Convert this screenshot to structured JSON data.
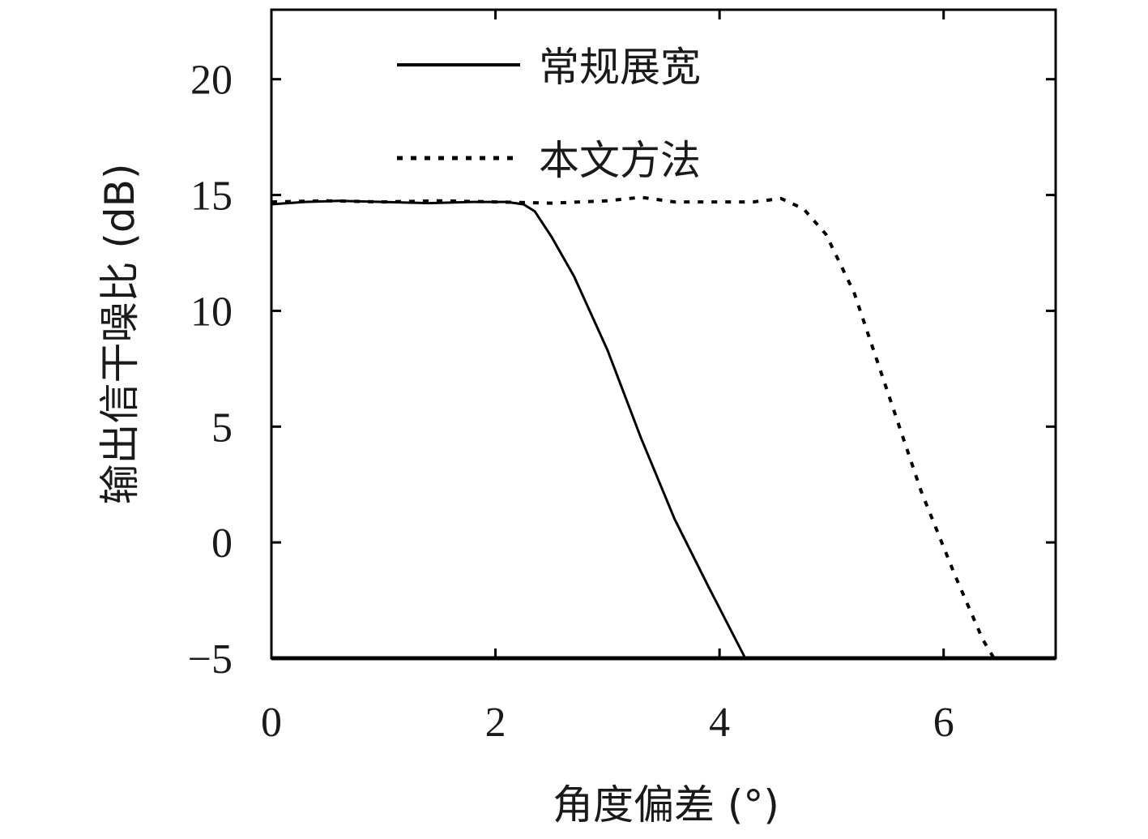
{
  "chart_data": {
    "type": "line",
    "title": "",
    "xlabel": "角度偏差 (°)",
    "ylabel": "输出信干噪比 (dB)",
    "xlim": [
      0,
      7
    ],
    "ylim": [
      -5,
      23
    ],
    "xticks": [
      0,
      2,
      4,
      6
    ],
    "yticks": [
      -5,
      0,
      5,
      10,
      15,
      20
    ],
    "xtick_labels": [
      "0",
      "2",
      "4",
      "6"
    ],
    "ytick_labels": [
      "−5",
      "0",
      "5",
      "10",
      "15",
      "20"
    ],
    "grid": false,
    "legend_position": "top-left",
    "series": [
      {
        "name": "常规展宽",
        "style": "solid",
        "color": "#000000",
        "x": [
          0,
          0.3,
          0.6,
          1.0,
          1.4,
          1.8,
          2.1,
          2.25,
          2.35,
          2.5,
          2.7,
          3.0,
          3.3,
          3.6,
          3.9,
          4.23
        ],
        "y": [
          14.6,
          14.7,
          14.75,
          14.7,
          14.65,
          14.7,
          14.7,
          14.6,
          14.3,
          13.2,
          11.5,
          8.3,
          4.5,
          1.0,
          -1.9,
          -5.0
        ]
      },
      {
        "name": "本文方法",
        "style": "dotted",
        "color": "#000000",
        "x": [
          0,
          0.5,
          1.0,
          1.5,
          2.0,
          2.5,
          3.0,
          3.3,
          3.6,
          4.0,
          4.3,
          4.55,
          4.75,
          4.95,
          5.2,
          5.5,
          5.8,
          6.1,
          6.35,
          6.45
        ],
        "y": [
          14.7,
          14.75,
          14.7,
          14.75,
          14.7,
          14.65,
          14.75,
          14.9,
          14.7,
          14.7,
          14.7,
          14.85,
          14.4,
          13.3,
          10.8,
          6.5,
          2.2,
          -1.4,
          -4.2,
          -5.0
        ]
      }
    ]
  }
}
